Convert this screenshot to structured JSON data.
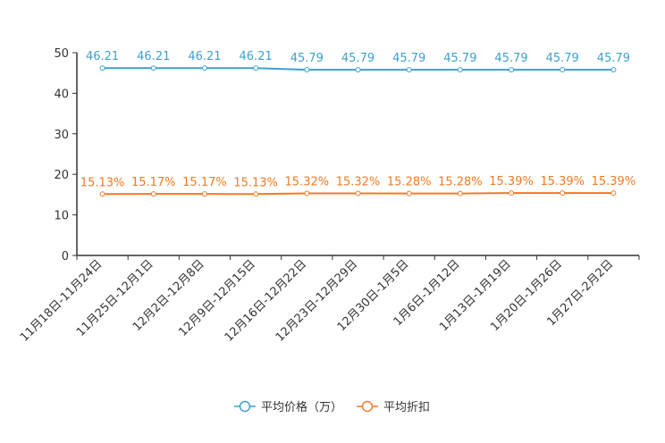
{
  "chart_data": {
    "type": "line",
    "categories": [
      "11月18日-11月24日",
      "11月25日-12月1日",
      "12月2日-12月8日",
      "12月9日-12月15日",
      "12月16日-12月22日",
      "12月23日-12月29日",
      "12月30日-1月5日",
      "1月6日-1月12日",
      "1月13日-1月19日",
      "1月20日-1月26日",
      "1月27日-2月2日"
    ],
    "series": [
      {
        "name": "平均价格（万）",
        "color": "#3e9fce",
        "values": [
          46.21,
          46.21,
          46.21,
          46.21,
          45.79,
          45.79,
          45.79,
          45.79,
          45.79,
          45.79,
          45.79
        ],
        "labels": [
          "46.21",
          "46.21",
          "46.21",
          "46.21",
          "45.79",
          "45.79",
          "45.79",
          "45.79",
          "45.79",
          "45.79",
          "45.79"
        ]
      },
      {
        "name": "平均折扣",
        "color": "#f07a24",
        "values": [
          15.13,
          15.17,
          15.17,
          15.13,
          15.32,
          15.32,
          15.28,
          15.28,
          15.39,
          15.39,
          15.39
        ],
        "labels": [
          "15.13%",
          "15.17%",
          "15.17%",
          "15.13%",
          "15.32%",
          "15.32%",
          "15.28%",
          "15.28%",
          "15.39%",
          "15.39%",
          "15.39%"
        ]
      }
    ],
    "ylim": [
      0,
      50
    ],
    "yticks": [
      0,
      10,
      20,
      30,
      40,
      50
    ],
    "grid": false,
    "legend_position": "bottom-center"
  }
}
